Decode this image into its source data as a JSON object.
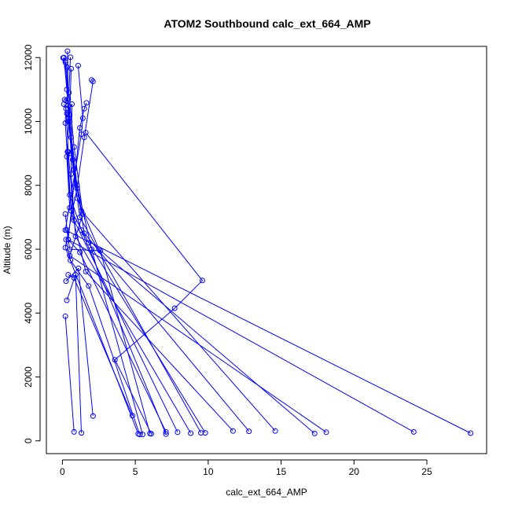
{
  "chart_data": {
    "type": "line",
    "title": "ATOM2 Southbound calc_ext_664_AMP",
    "xlabel": "calc_ext_664_AMP",
    "ylabel": "Altitude (m)",
    "xlim": [
      -1.1,
      29.1
    ],
    "ylim": [
      -400,
      12350
    ],
    "xticks": [
      0,
      5,
      10,
      15,
      20,
      25
    ],
    "yticks": [
      0,
      2000,
      4000,
      6000,
      8000,
      10000,
      12000
    ],
    "grid": false,
    "legend": "none",
    "series_color": "#0000ff",
    "markers": "open-circle",
    "series": [
      {
        "points": [
          [
            0.1,
            12000
          ],
          [
            0.3,
            11000
          ],
          [
            0.5,
            10000
          ],
          [
            1.0,
            8000
          ],
          [
            2.0,
            6000
          ],
          [
            5.5,
            200
          ]
        ]
      },
      {
        "points": [
          [
            0.05,
            11990
          ],
          [
            0.2,
            11900
          ],
          [
            0.4,
            10500
          ],
          [
            0.6,
            9000
          ],
          [
            1.2,
            7000
          ],
          [
            9.5,
            250
          ]
        ]
      },
      {
        "points": [
          [
            0.2,
            11850
          ],
          [
            0.3,
            11700
          ],
          [
            0.4,
            10000
          ],
          [
            0.8,
            8500
          ],
          [
            1.5,
            6500
          ],
          [
            12.8,
            300
          ]
        ]
      },
      {
        "points": [
          [
            0.6,
            11650
          ],
          [
            0.5,
            10200
          ],
          [
            0.7,
            8800
          ],
          [
            1.3,
            7200
          ],
          [
            14.6,
            310
          ]
        ]
      },
      {
        "points": [
          [
            0.35,
            12200
          ],
          [
            0.4,
            10700
          ],
          [
            0.6,
            9500
          ],
          [
            1.0,
            7600
          ],
          [
            2.5,
            6000
          ],
          [
            17.3,
            230
          ]
        ]
      },
      {
        "points": [
          [
            0.55,
            12010
          ],
          [
            0.45,
            10900
          ],
          [
            0.8,
            9200
          ],
          [
            1.4,
            7100
          ],
          [
            0.5,
            5800
          ],
          [
            18.1,
            270
          ]
        ]
      },
      {
        "points": [
          [
            1.65,
            10580
          ],
          [
            1.5,
            10400
          ],
          [
            1.2,
            9800
          ],
          [
            0.4,
            6300
          ],
          [
            24.1,
            280
          ]
        ]
      },
      {
        "points": [
          [
            1.08,
            11750
          ],
          [
            1.4,
            10100
          ],
          [
            1.3,
            9600
          ],
          [
            0.2,
            6600
          ],
          [
            28.0,
            240
          ]
        ]
      },
      {
        "points": [
          [
            2.0,
            11300
          ],
          [
            2.1,
            11250
          ],
          [
            1.5,
            9500
          ],
          [
            1.0,
            7900
          ],
          [
            0.2,
            6050
          ],
          [
            5.2,
            220
          ]
        ]
      },
      {
        "points": [
          [
            1.6,
            9650
          ],
          [
            9.6,
            5020
          ],
          [
            7.7,
            4150
          ],
          [
            3.6,
            2540
          ],
          [
            6.1,
            220
          ]
        ]
      },
      {
        "points": [
          [
            0.15,
            10680
          ],
          [
            0.25,
            10650
          ],
          [
            0.2,
            9950
          ],
          [
            0.5,
            7700
          ],
          [
            1.3,
            6600
          ],
          [
            7.1,
            210
          ]
        ]
      },
      {
        "points": [
          [
            0.1,
            10540
          ],
          [
            0.25,
            10400
          ],
          [
            0.4,
            9050
          ],
          [
            0.8,
            6900
          ],
          [
            7.9,
            270
          ]
        ]
      },
      {
        "points": [
          [
            0.3,
            10250
          ],
          [
            0.65,
            10540
          ],
          [
            0.6,
            8350
          ],
          [
            0.9,
            6400
          ],
          [
            8.8,
            240
          ]
        ]
      },
      {
        "points": [
          [
            0.45,
            10100
          ],
          [
            0.3,
            8900
          ],
          [
            0.5,
            7300
          ],
          [
            1.8,
            6200
          ],
          [
            9.8,
            250
          ]
        ]
      },
      {
        "points": [
          [
            0.35,
            9050
          ],
          [
            0.6,
            7200
          ],
          [
            1.6,
            5300
          ],
          [
            11.7,
            310
          ]
        ]
      },
      {
        "points": [
          [
            0.2,
            7100
          ],
          [
            0.4,
            6300
          ],
          [
            1.2,
            5900
          ],
          [
            7.1,
            280
          ]
        ]
      },
      {
        "points": [
          [
            0.3,
            6600
          ],
          [
            0.5,
            6000
          ],
          [
            2.6,
            5950
          ],
          [
            6.0,
            230
          ]
        ]
      },
      {
        "points": [
          [
            0.25,
            6300
          ],
          [
            0.55,
            5650
          ],
          [
            1.8,
            4850
          ],
          [
            5.3,
            200
          ]
        ]
      },
      {
        "points": [
          [
            0.4,
            5200
          ],
          [
            0.8,
            5100
          ],
          [
            4.8,
            790
          ]
        ]
      },
      {
        "points": [
          [
            0.2,
            3900
          ],
          [
            0.8,
            280
          ]
        ]
      },
      {
        "points": [
          [
            0.3,
            4400
          ],
          [
            0.9,
            5200
          ],
          [
            1.3,
            250
          ]
        ]
      },
      {
        "points": [
          [
            0.25,
            5000
          ],
          [
            1.1,
            5400
          ],
          [
            2.1,
            780
          ]
        ]
      }
    ]
  }
}
